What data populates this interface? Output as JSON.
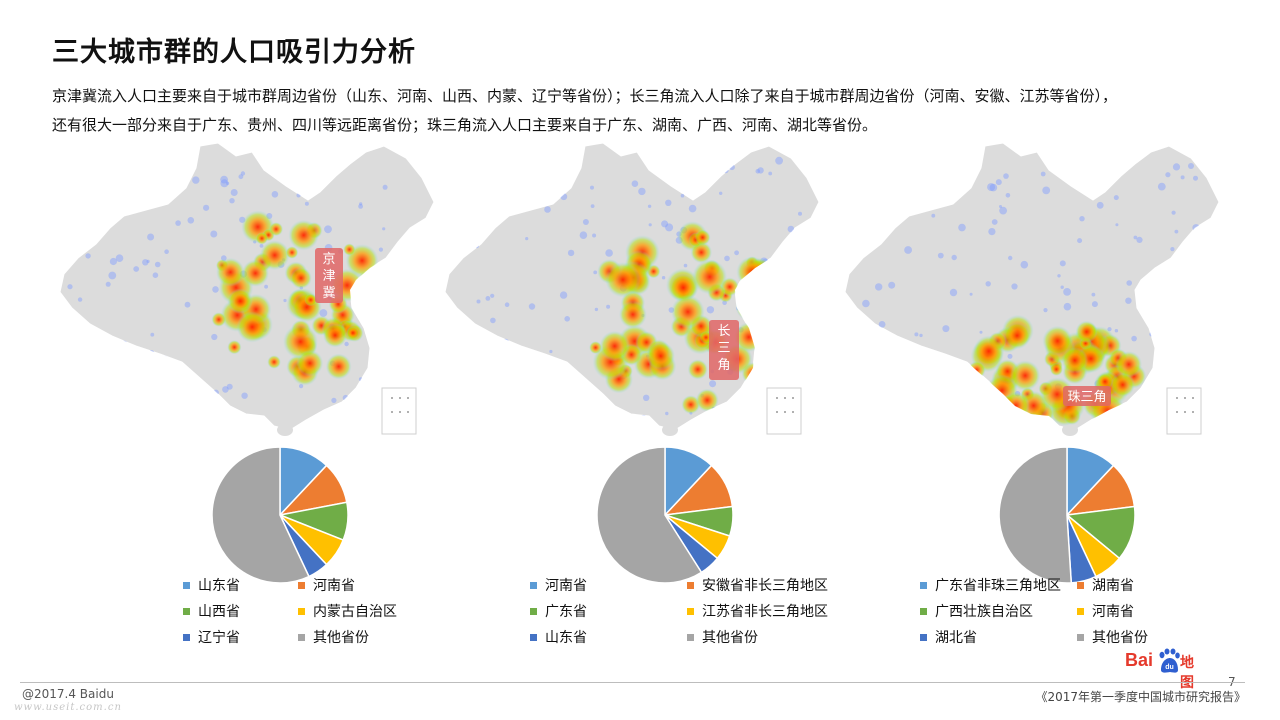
{
  "header": {
    "title": "三大城市群的人口吸引力分析",
    "desc_line1": "京津冀流入人口主要来自于城市群周边省份（山东、河南、山西、内蒙、辽宁等省份）；长三角流入人口除了来自于城市群周边省份（河南、安徽、江苏等省份），",
    "desc_line2": "还有很大一部分来自于广东、贵州、四川等远距离省份；珠三角流入人口主要来自于广东、湖南、广西、河南、湖北等省份。"
  },
  "maps": [
    {
      "label": "京\n津\n冀",
      "hot_region": "north"
    },
    {
      "label": "长\n三\n角",
      "hot_region": "east"
    },
    {
      "label": "珠三角",
      "hot_region": "south"
    }
  ],
  "colors": {
    "blue": "#5b9bd5",
    "orange": "#ed7d31",
    "green": "#70ad47",
    "yellow": "#ffc000",
    "darkblue": "#4472c4",
    "gray": "#a5a5a5",
    "region_label": "#e06666",
    "heat_red": "#ff2a00"
  },
  "chart_data": [
    {
      "type": "pie",
      "labels": [
        "山东省",
        "河南省",
        "山西省",
        "内蒙古自治区",
        "辽宁省",
        "其他省份"
      ],
      "values": [
        12,
        10,
        9,
        7,
        5,
        57
      ],
      "colors": [
        "#5b9bd5",
        "#ed7d31",
        "#70ad47",
        "#ffc000",
        "#4472c4",
        "#a5a5a5"
      ]
    },
    {
      "type": "pie",
      "labels": [
        "河南省",
        "安徽省非长三角地区",
        "广东省",
        "江苏省非长三角地区",
        "山东省",
        "其他省份"
      ],
      "values": [
        12,
        11,
        7,
        6,
        5,
        59
      ],
      "colors": [
        "#5b9bd5",
        "#ed7d31",
        "#70ad47",
        "#ffc000",
        "#4472c4",
        "#a5a5a5"
      ]
    },
    {
      "type": "pie",
      "labels": [
        "广东省非珠三角地区",
        "湖南省",
        "广西壮族自治区",
        "河南省",
        "湖北省",
        "其他省份"
      ],
      "values": [
        12,
        11,
        13,
        7,
        6,
        51
      ],
      "colors": [
        "#5b9bd5",
        "#ed7d31",
        "#70ad47",
        "#ffc000",
        "#4472c4",
        "#a5a5a5"
      ]
    }
  ],
  "footer": {
    "page_number": "7",
    "copyright": "@2017.4 Baidu",
    "watermark": "www.useit.com.cn",
    "report": "《2017年第一季度中国城市研究报告》",
    "logo_bai": "Bai",
    "logo_paw": "du",
    "logo_ditu": "地图"
  }
}
